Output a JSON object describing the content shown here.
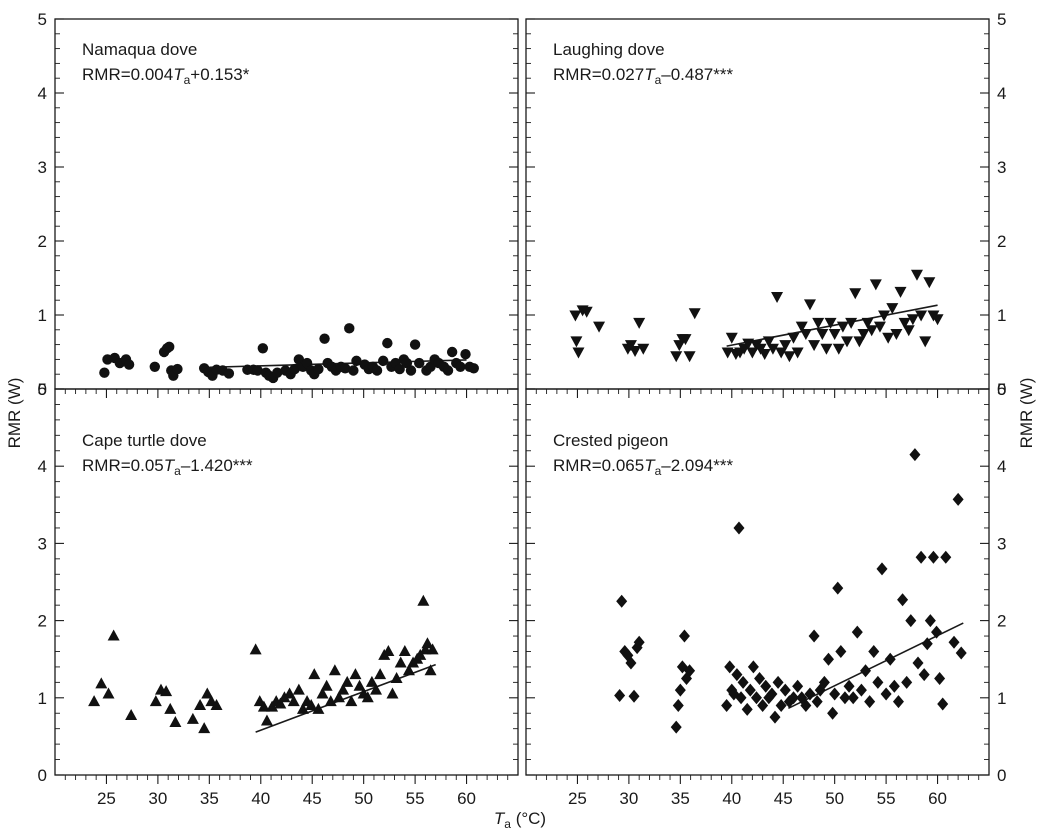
{
  "figure": {
    "xlabel_main": "T",
    "xlabel_sub": "a",
    "xlabel_unit": " (°C)",
    "ylabel": "RMR (W)"
  },
  "chart_data": [
    {
      "type": "scatter",
      "title": "Namaqua dove",
      "equation": {
        "pre": "RMR=0.004",
        "var": "T",
        "sub": "a",
        "post": "+0.153*"
      },
      "marker": "circle",
      "xlim": [
        20,
        65
      ],
      "ylim": [
        0,
        5
      ],
      "xticks": [
        25,
        30,
        35,
        40,
        45,
        50,
        55,
        60
      ],
      "yticks": [
        0,
        1,
        2,
        3,
        4,
        5
      ],
      "fit": {
        "slope": 0.004,
        "intercept": 0.153,
        "x_range": [
          35,
          60
        ]
      },
      "points": [
        [
          24.8,
          0.22
        ],
        [
          25.1,
          0.4
        ],
        [
          25.8,
          0.42
        ],
        [
          26.3,
          0.35
        ],
        [
          26.9,
          0.4
        ],
        [
          27.2,
          0.33
        ],
        [
          29.7,
          0.3
        ],
        [
          30.6,
          0.5
        ],
        [
          30.9,
          0.55
        ],
        [
          31.1,
          0.57
        ],
        [
          31.3,
          0.25
        ],
        [
          31.5,
          0.18
        ],
        [
          31.9,
          0.27
        ],
        [
          34.5,
          0.28
        ],
        [
          34.9,
          0.23
        ],
        [
          35.3,
          0.18
        ],
        [
          35.7,
          0.26
        ],
        [
          36.3,
          0.25
        ],
        [
          36.9,
          0.21
        ],
        [
          38.7,
          0.26
        ],
        [
          39.3,
          0.26
        ],
        [
          39.7,
          0.25
        ],
        [
          40.2,
          0.55
        ],
        [
          40.5,
          0.22
        ],
        [
          40.8,
          0.18
        ],
        [
          41.2,
          0.15
        ],
        [
          41.6,
          0.22
        ],
        [
          42.4,
          0.25
        ],
        [
          42.9,
          0.2
        ],
        [
          43.3,
          0.27
        ],
        [
          43.7,
          0.4
        ],
        [
          44.1,
          0.3
        ],
        [
          44.5,
          0.35
        ],
        [
          44.9,
          0.25
        ],
        [
          45.2,
          0.2
        ],
        [
          45.6,
          0.27
        ],
        [
          46.2,
          0.68
        ],
        [
          46.5,
          0.35
        ],
        [
          46.9,
          0.3
        ],
        [
          47.3,
          0.25
        ],
        [
          47.8,
          0.3
        ],
        [
          48.2,
          0.28
        ],
        [
          48.6,
          0.82
        ],
        [
          49.0,
          0.25
        ],
        [
          49.3,
          0.38
        ],
        [
          50.1,
          0.33
        ],
        [
          50.5,
          0.27
        ],
        [
          50.9,
          0.3
        ],
        [
          51.3,
          0.25
        ],
        [
          51.9,
          0.38
        ],
        [
          52.3,
          0.62
        ],
        [
          52.7,
          0.3
        ],
        [
          53.1,
          0.35
        ],
        [
          53.5,
          0.27
        ],
        [
          53.9,
          0.4
        ],
        [
          54.2,
          0.35
        ],
        [
          54.6,
          0.25
        ],
        [
          55.0,
          0.6
        ],
        [
          55.4,
          0.35
        ],
        [
          56.1,
          0.25
        ],
        [
          56.5,
          0.3
        ],
        [
          56.9,
          0.4
        ],
        [
          57.3,
          0.35
        ],
        [
          57.8,
          0.3
        ],
        [
          58.2,
          0.25
        ],
        [
          58.6,
          0.5
        ],
        [
          59.0,
          0.35
        ],
        [
          59.4,
          0.3
        ],
        [
          59.9,
          0.47
        ],
        [
          60.3,
          0.3
        ],
        [
          60.7,
          0.28
        ]
      ]
    },
    {
      "type": "scatter",
      "title": "Laughing dove",
      "equation": {
        "pre": "RMR=0.027",
        "var": "T",
        "sub": "a",
        "post": "–0.487***"
      },
      "marker": "triangle-down",
      "xlim": [
        20,
        65
      ],
      "ylim": [
        0,
        5
      ],
      "xticks": [
        25,
        30,
        35,
        40,
        45,
        50,
        55,
        60
      ],
      "yticks": [
        0,
        1,
        2,
        3,
        4,
        5
      ],
      "fit": {
        "slope": 0.027,
        "intercept": -0.487,
        "x_range": [
          39.5,
          60
        ]
      },
      "points": [
        [
          24.8,
          1.0
        ],
        [
          24.9,
          0.65
        ],
        [
          25.1,
          0.5
        ],
        [
          25.5,
          1.07
        ],
        [
          25.9,
          1.05
        ],
        [
          27.1,
          0.85
        ],
        [
          29.9,
          0.55
        ],
        [
          30.2,
          0.6
        ],
        [
          30.6,
          0.52
        ],
        [
          31.0,
          0.9
        ],
        [
          31.4,
          0.55
        ],
        [
          34.6,
          0.45
        ],
        [
          34.9,
          0.6
        ],
        [
          35.2,
          0.68
        ],
        [
          35.5,
          0.68
        ],
        [
          35.9,
          0.45
        ],
        [
          36.4,
          1.03
        ],
        [
          39.6,
          0.5
        ],
        [
          40.0,
          0.7
        ],
        [
          40.4,
          0.48
        ],
        [
          40.8,
          0.5
        ],
        [
          41.2,
          0.55
        ],
        [
          41.6,
          0.62
        ],
        [
          42.0,
          0.5
        ],
        [
          42.4,
          0.6
        ],
        [
          42.8,
          0.55
        ],
        [
          43.2,
          0.48
        ],
        [
          43.6,
          0.65
        ],
        [
          44.0,
          0.55
        ],
        [
          44.4,
          1.25
        ],
        [
          44.8,
          0.5
        ],
        [
          45.2,
          0.6
        ],
        [
          45.6,
          0.45
        ],
        [
          46.0,
          0.7
        ],
        [
          46.4,
          0.5
        ],
        [
          46.8,
          0.85
        ],
        [
          47.2,
          0.75
        ],
        [
          47.6,
          1.15
        ],
        [
          48.0,
          0.6
        ],
        [
          48.4,
          0.9
        ],
        [
          48.8,
          0.75
        ],
        [
          49.2,
          0.55
        ],
        [
          49.6,
          0.9
        ],
        [
          50.0,
          0.75
        ],
        [
          50.4,
          0.55
        ],
        [
          50.8,
          0.85
        ],
        [
          51.2,
          0.65
        ],
        [
          51.6,
          0.9
        ],
        [
          52.0,
          1.3
        ],
        [
          52.4,
          0.65
        ],
        [
          52.8,
          0.75
        ],
        [
          53.2,
          0.9
        ],
        [
          53.6,
          0.8
        ],
        [
          54.0,
          1.42
        ],
        [
          54.4,
          0.85
        ],
        [
          54.8,
          1.0
        ],
        [
          55.2,
          0.7
        ],
        [
          55.6,
          1.1
        ],
        [
          56.0,
          0.75
        ],
        [
          56.4,
          1.32
        ],
        [
          56.8,
          0.9
        ],
        [
          57.2,
          0.8
        ],
        [
          57.6,
          0.95
        ],
        [
          58.0,
          1.55
        ],
        [
          58.4,
          1.0
        ],
        [
          58.8,
          0.65
        ],
        [
          59.2,
          1.45
        ],
        [
          59.6,
          1.0
        ],
        [
          60.0,
          0.95
        ]
      ]
    },
    {
      "type": "scatter",
      "title": "Cape turtle dove",
      "equation": {
        "pre": "RMR=0.05",
        "var": "T",
        "sub": "a",
        "post": "–1.420***"
      },
      "marker": "triangle-up",
      "xlim": [
        20,
        65
      ],
      "ylim": [
        0,
        5
      ],
      "xticks": [
        25,
        30,
        35,
        40,
        45,
        50,
        55,
        60
      ],
      "yticks": [
        0,
        1,
        2,
        3,
        4,
        5
      ],
      "fit": {
        "slope": 0.05,
        "intercept": -1.42,
        "x_range": [
          39.5,
          57
        ]
      },
      "points": [
        [
          23.8,
          0.95
        ],
        [
          24.5,
          1.18
        ],
        [
          25.2,
          1.05
        ],
        [
          25.7,
          1.8
        ],
        [
          27.4,
          0.77
        ],
        [
          29.8,
          0.95
        ],
        [
          30.3,
          1.1
        ],
        [
          30.8,
          1.08
        ],
        [
          31.2,
          0.85
        ],
        [
          31.7,
          0.68
        ],
        [
          33.4,
          0.72
        ],
        [
          34.1,
          0.9
        ],
        [
          34.5,
          0.6
        ],
        [
          34.8,
          1.05
        ],
        [
          35.2,
          0.95
        ],
        [
          35.7,
          0.9
        ],
        [
          39.5,
          1.62
        ],
        [
          39.9,
          0.95
        ],
        [
          40.3,
          0.88
        ],
        [
          40.6,
          0.7
        ],
        [
          41.1,
          0.88
        ],
        [
          41.5,
          0.95
        ],
        [
          41.9,
          0.92
        ],
        [
          42.3,
          1.0
        ],
        [
          42.8,
          1.05
        ],
        [
          43.2,
          0.95
        ],
        [
          43.7,
          1.1
        ],
        [
          44.1,
          0.85
        ],
        [
          44.5,
          0.95
        ],
        [
          44.9,
          0.9
        ],
        [
          45.2,
          1.3
        ],
        [
          45.6,
          0.85
        ],
        [
          46.0,
          1.05
        ],
        [
          46.4,
          1.15
        ],
        [
          46.8,
          0.95
        ],
        [
          47.2,
          1.35
        ],
        [
          47.6,
          1.0
        ],
        [
          48.0,
          1.1
        ],
        [
          48.4,
          1.2
        ],
        [
          48.8,
          0.95
        ],
        [
          49.2,
          1.3
        ],
        [
          49.6,
          1.15
        ],
        [
          50.0,
          1.05
        ],
        [
          50.4,
          1.0
        ],
        [
          50.8,
          1.2
        ],
        [
          51.2,
          1.1
        ],
        [
          51.6,
          1.3
        ],
        [
          52.0,
          1.55
        ],
        [
          52.4,
          1.6
        ],
        [
          52.8,
          1.05
        ],
        [
          53.2,
          1.25
        ],
        [
          53.6,
          1.45
        ],
        [
          54.0,
          1.6
        ],
        [
          54.4,
          1.35
        ],
        [
          54.8,
          1.45
        ],
        [
          55.2,
          1.5
        ],
        [
          55.5,
          1.55
        ],
        [
          55.8,
          2.25
        ],
        [
          56.0,
          1.62
        ],
        [
          56.2,
          1.7
        ],
        [
          56.5,
          1.35
        ],
        [
          56.7,
          1.62
        ]
      ]
    },
    {
      "type": "scatter",
      "title": "Crested pigeon",
      "equation": {
        "pre": "RMR=0.065",
        "var": "T",
        "sub": "a",
        "post": "–2.094***"
      },
      "marker": "diamond",
      "xlim": [
        20,
        65
      ],
      "ylim": [
        0,
        5
      ],
      "xticks": [
        25,
        30,
        35,
        40,
        45,
        50,
        55,
        60
      ],
      "yticks": [
        0,
        1,
        2,
        3,
        4,
        5
      ],
      "fit": {
        "slope": 0.065,
        "intercept": -2.094,
        "x_range": [
          45.5,
          62.5
        ]
      },
      "points": [
        [
          29.1,
          1.03
        ],
        [
          29.3,
          2.25
        ],
        [
          29.6,
          1.6
        ],
        [
          29.9,
          1.55
        ],
        [
          30.2,
          1.45
        ],
        [
          30.5,
          1.02
        ],
        [
          30.8,
          1.65
        ],
        [
          31.0,
          1.72
        ],
        [
          34.6,
          0.62
        ],
        [
          34.8,
          0.9
        ],
        [
          35.0,
          1.1
        ],
        [
          35.2,
          1.4
        ],
        [
          35.4,
          1.8
        ],
        [
          35.6,
          1.25
        ],
        [
          35.9,
          1.35
        ],
        [
          39.5,
          0.9
        ],
        [
          39.8,
          1.4
        ],
        [
          40.0,
          1.1
        ],
        [
          40.2,
          1.05
        ],
        [
          40.5,
          1.3
        ],
        [
          40.7,
          3.2
        ],
        [
          40.9,
          1.0
        ],
        [
          41.1,
          1.2
        ],
        [
          41.5,
          0.85
        ],
        [
          41.8,
          1.1
        ],
        [
          42.1,
          1.4
        ],
        [
          42.4,
          1.0
        ],
        [
          42.7,
          1.25
        ],
        [
          43.0,
          0.9
        ],
        [
          43.3,
          1.15
        ],
        [
          43.6,
          1.0
        ],
        [
          43.9,
          1.05
        ],
        [
          44.2,
          0.75
        ],
        [
          44.5,
          1.2
        ],
        [
          44.8,
          0.9
        ],
        [
          45.2,
          1.1
        ],
        [
          45.6,
          0.95
        ],
        [
          46.0,
          1.0
        ],
        [
          46.4,
          1.15
        ],
        [
          46.8,
          1.0
        ],
        [
          47.2,
          0.9
        ],
        [
          47.6,
          1.05
        ],
        [
          48.0,
          1.8
        ],
        [
          48.3,
          0.95
        ],
        [
          48.6,
          1.1
        ],
        [
          49.0,
          1.2
        ],
        [
          49.4,
          1.5
        ],
        [
          49.8,
          0.8
        ],
        [
          50.0,
          1.05
        ],
        [
          50.3,
          2.42
        ],
        [
          50.6,
          1.6
        ],
        [
          51.0,
          1.0
        ],
        [
          51.4,
          1.15
        ],
        [
          51.8,
          1.0
        ],
        [
          52.2,
          1.85
        ],
        [
          52.6,
          1.1
        ],
        [
          53.0,
          1.35
        ],
        [
          53.4,
          0.95
        ],
        [
          53.8,
          1.6
        ],
        [
          54.2,
          1.2
        ],
        [
          54.6,
          2.67
        ],
        [
          55.0,
          1.05
        ],
        [
          55.4,
          1.5
        ],
        [
          55.8,
          1.15
        ],
        [
          56.2,
          0.95
        ],
        [
          56.6,
          2.27
        ],
        [
          57.0,
          1.2
        ],
        [
          57.4,
          2.0
        ],
        [
          57.8,
          4.15
        ],
        [
          58.1,
          1.45
        ],
        [
          58.4,
          2.82
        ],
        [
          58.7,
          1.3
        ],
        [
          59.0,
          1.7
        ],
        [
          59.3,
          2.0
        ],
        [
          59.6,
          2.82
        ],
        [
          59.9,
          1.85
        ],
        [
          60.2,
          1.25
        ],
        [
          60.5,
          0.92
        ],
        [
          60.8,
          2.82
        ],
        [
          61.6,
          1.72
        ],
        [
          62.0,
          3.57
        ],
        [
          62.3,
          1.58
        ]
      ]
    }
  ]
}
